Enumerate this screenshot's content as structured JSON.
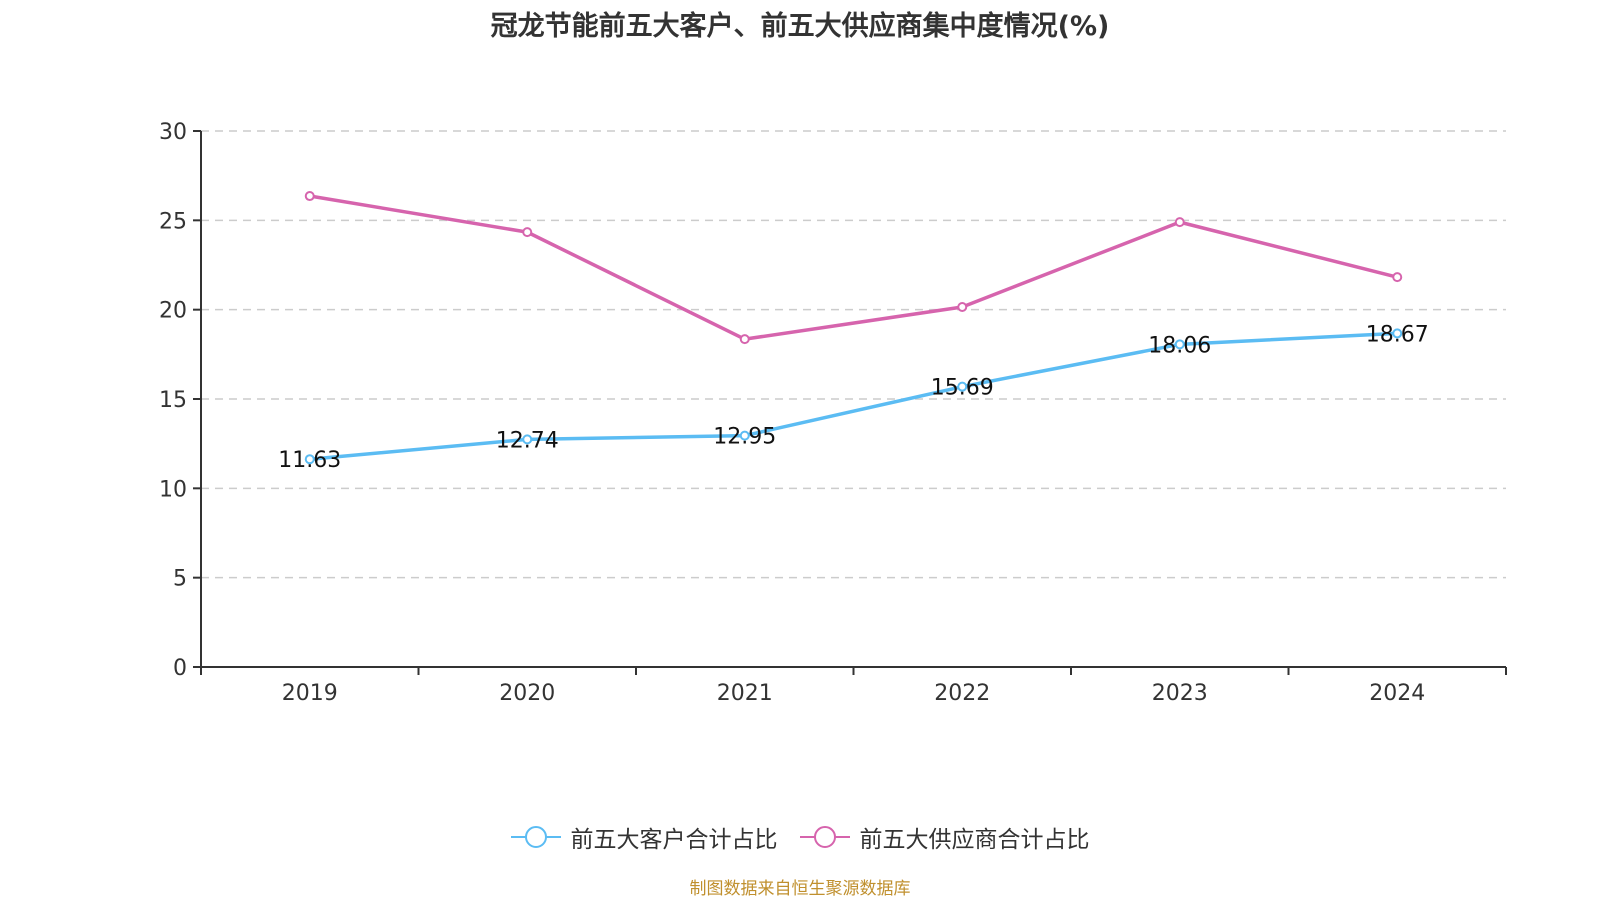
{
  "chart_data": {
    "type": "line",
    "title": "冠龙节能前五大客户、前五大供应商集中度情况(%)",
    "xlabel": "",
    "ylabel": "",
    "categories": [
      "2019",
      "2020",
      "2021",
      "2022",
      "2023",
      "2024"
    ],
    "ylim": [
      0,
      30
    ],
    "yticks": [
      "0",
      "5",
      "10",
      "15",
      "20",
      "25",
      "30"
    ],
    "grid": true,
    "legend_position": "bottom",
    "series": [
      {
        "name": "前五大客户合计占比",
        "color": "#5bbcf3",
        "values": [
          11.63,
          12.74,
          12.95,
          15.69,
          18.06,
          18.67
        ],
        "labels": [
          "11.63",
          "12.74",
          "12.95",
          "15.69",
          "18.06",
          "18.67"
        ],
        "show_labels": true
      },
      {
        "name": "前五大供应商合计占比",
        "color": "#d664ad",
        "values": [
          26.36,
          24.34,
          18.35,
          20.15,
          24.9,
          21.82
        ],
        "show_labels": false
      }
    ],
    "source": "制图数据来自恒生聚源数据库"
  }
}
